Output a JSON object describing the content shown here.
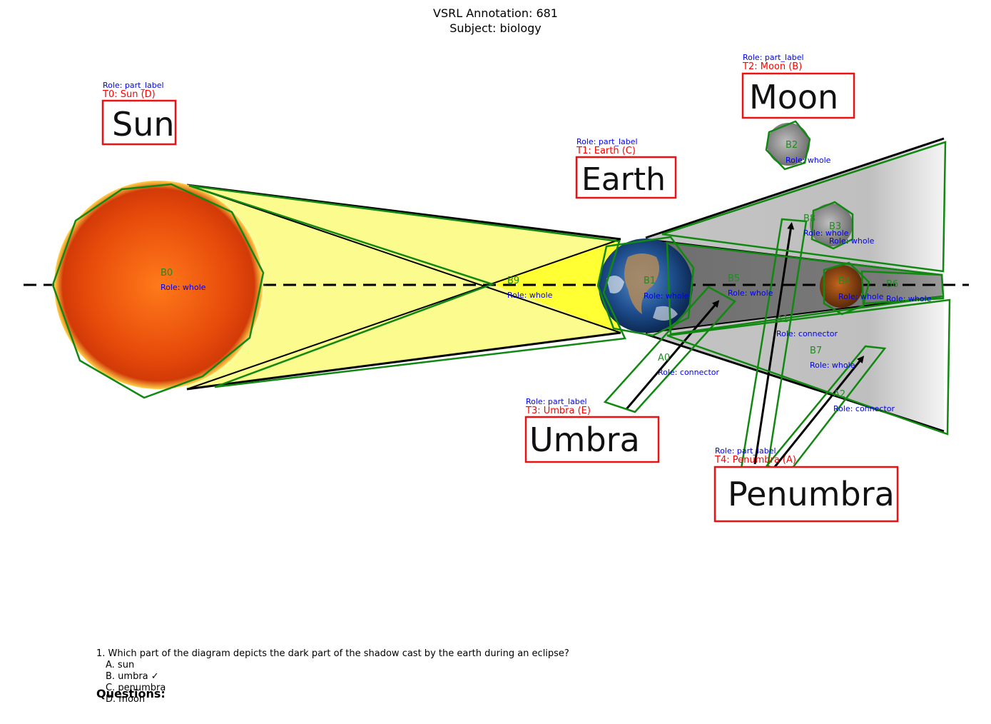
{
  "header": {
    "title": "VSRL Annotation: 681",
    "subject": "Subject: biology"
  },
  "labels": {
    "sun_word": "Sun",
    "earth_word": "Earth",
    "moon_word": "Moon",
    "umbra_word": "Umbra",
    "penumbra_word": "Penumbra"
  },
  "text_annotations": [
    {
      "id": "T0",
      "tag": "T0: Sun (D)",
      "role": "Role: part_label"
    },
    {
      "id": "T1",
      "tag": "T1: Earth (C)",
      "role": "Role: part_label"
    },
    {
      "id": "T2",
      "tag": "T2: Moon (B)",
      "role": "Role: part_label"
    },
    {
      "id": "T3",
      "tag": "T3: Umbra (E)",
      "role": "Role: part_label"
    },
    {
      "id": "T4",
      "tag": "T4: Penumbra (A)",
      "role": "Role: part_label"
    }
  ],
  "blob_annotations": [
    {
      "id": "B0",
      "role": "Role: whole"
    },
    {
      "id": "B1",
      "role": "Role: whole"
    },
    {
      "id": "B2",
      "role": "Role: whole"
    },
    {
      "id": "B3",
      "role": "Role: whole"
    },
    {
      "id": "B4",
      "role": "Role: whole"
    },
    {
      "id": "B5",
      "role": "Role: whole"
    },
    {
      "id": "B6",
      "role": "Role: whole"
    },
    {
      "id": "B7",
      "role": "Role: whole"
    },
    {
      "id": "B8",
      "role": "Role: whole"
    },
    {
      "id": "B9",
      "role": "Role: whole"
    }
  ],
  "arrow_annotations": [
    {
      "id": "A0",
      "role": "Role: connector"
    },
    {
      "id": "A1",
      "role": "Role: connector"
    },
    {
      "id": "A2",
      "role": "Role: connector"
    }
  ],
  "questions": {
    "heading": "Questions:",
    "items": [
      {
        "question": "1. Which part of the diagram depicts the dark part of the shadow cast by the earth during an eclipse?",
        "options": [
          "A. sun",
          "B. umbra ✓",
          "C. penumbra",
          "D. moon"
        ]
      }
    ]
  },
  "colors": {
    "text_box": "#ee1111",
    "polygon": "#118811",
    "role_text": "#0000ee",
    "tag_text": "#ff0000",
    "sun_light": "#fbfb8e",
    "umbra": "#7a7a7a",
    "penumbra": "#bdbdbd"
  }
}
